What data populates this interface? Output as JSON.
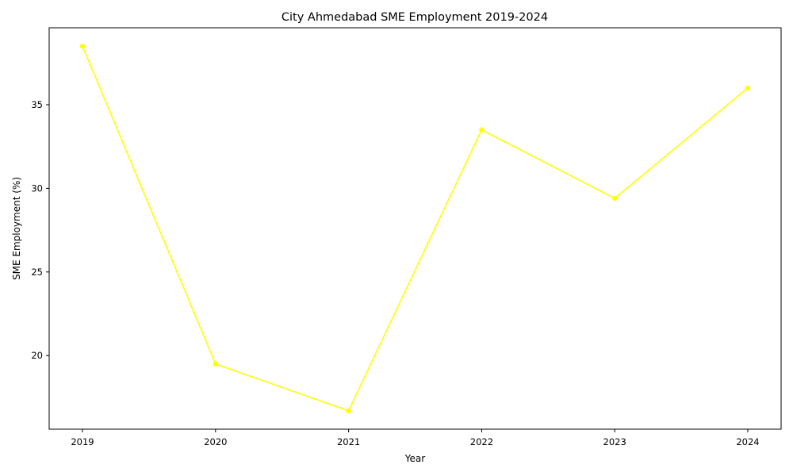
{
  "chart_data": {
    "type": "line",
    "title": "City Ahmedabad SME Employment 2019-2024",
    "xlabel": "Year",
    "ylabel": "SME Employment (%)",
    "x": [
      "2019",
      "2020",
      "2021",
      "2022",
      "2023",
      "2024"
    ],
    "series": [
      {
        "values": [
          38.5,
          19.5,
          16.7,
          33.5,
          29.4,
          36.0
        ]
      }
    ],
    "yticks": [
      20,
      25,
      30,
      35
    ],
    "ylim": [
      15.6,
      39.6
    ],
    "grid": false,
    "legend": "none",
    "line_color": "#ffff00"
  }
}
